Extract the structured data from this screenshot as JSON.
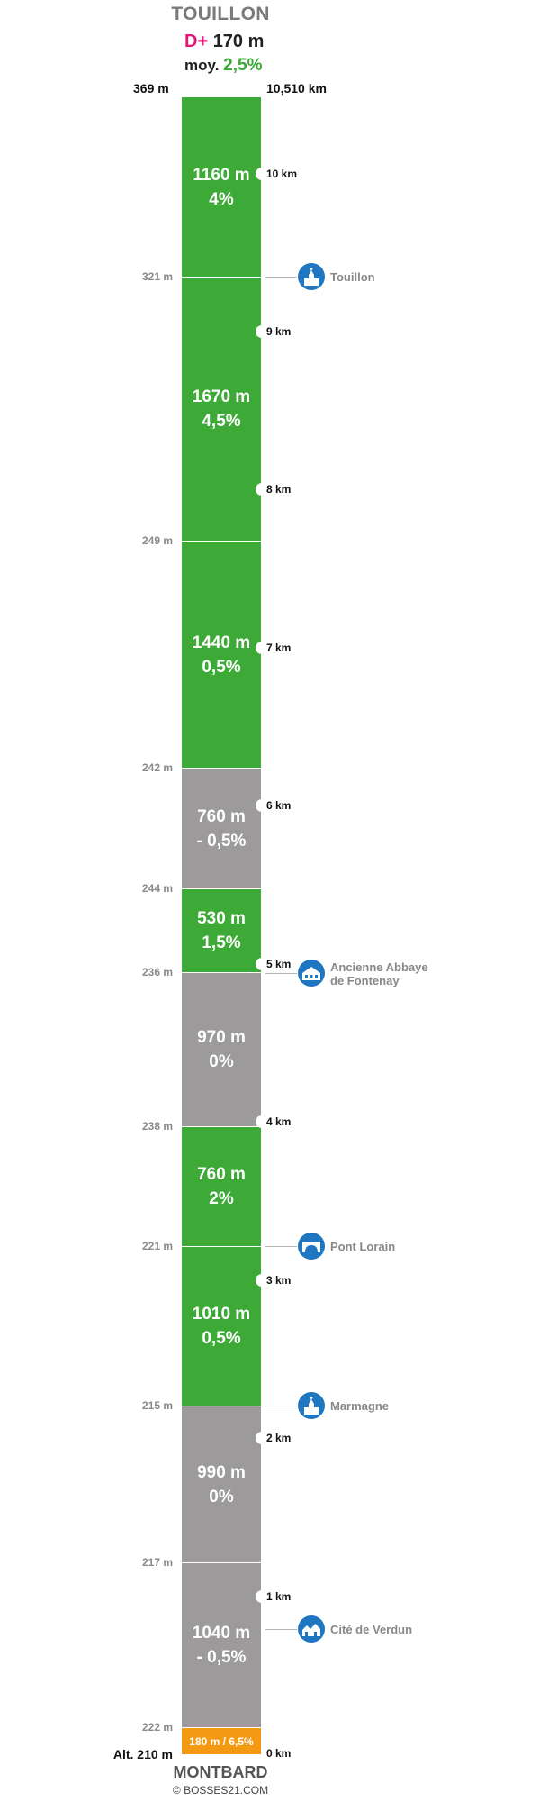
{
  "header": {
    "title": "TOUILLON",
    "dplus_label": "D+",
    "dplus_value": "170 m",
    "moy_label": "moy.",
    "moy_value": "2,5%",
    "top_alt": "369 m",
    "total_km": "10,510 km"
  },
  "segments": [
    {
      "length": "1160 m",
      "grade": "4%",
      "color": "green"
    },
    {
      "length": "1670 m",
      "grade": "4,5%",
      "color": "green"
    },
    {
      "length": "1440 m",
      "grade": "0,5%",
      "color": "green"
    },
    {
      "length": "760 m",
      "grade": "- 0,5%",
      "color": "grey"
    },
    {
      "length": "530 m",
      "grade": "1,5%",
      "color": "green"
    },
    {
      "length": "970 m",
      "grade": "0%",
      "color": "grey"
    },
    {
      "length": "760 m",
      "grade": "2%",
      "color": "green"
    },
    {
      "length": "1010 m",
      "grade": "0,5%",
      "color": "green"
    },
    {
      "length": "990 m",
      "grade": "0%",
      "color": "grey"
    },
    {
      "length": "1040 m",
      "grade": "- 0,5%",
      "color": "grey"
    },
    {
      "length": "180 m / 6,5%",
      "grade": "",
      "color": "orange"
    }
  ],
  "altitudes": [
    "321 m",
    "249 m",
    "242 m",
    "244 m",
    "236 m",
    "238 m",
    "221 m",
    "215 m",
    "217 m",
    "222 m"
  ],
  "km_markers": [
    "10 km",
    "9 km",
    "8 km",
    "7 km",
    "6 km",
    "5 km",
    "4 km",
    "3 km",
    "2 km",
    "1 km",
    "0 km"
  ],
  "pois": [
    {
      "name": "Touillon",
      "icon": "church-icon"
    },
    {
      "name": "Ancienne Abbaye de Fontenay",
      "line1": "Ancienne Abbaye",
      "line2": "de Fontenay",
      "icon": "abbey-icon"
    },
    {
      "name": "Pont Lorain",
      "icon": "bridge-icon"
    },
    {
      "name": "Marmagne",
      "icon": "church-icon"
    },
    {
      "name": "Cité de Verdun",
      "icon": "village-icon"
    }
  ],
  "footer": {
    "start_alt": "Alt. 210 m",
    "start_name": "MONTBARD",
    "copyright": "© BOSSES21.COM"
  },
  "colors": {
    "climb": "#3daa37",
    "flat": "#9c9a9a",
    "steep": "#f39a12",
    "poi": "#1e77c0",
    "accent_pink": "#e6157a"
  }
}
